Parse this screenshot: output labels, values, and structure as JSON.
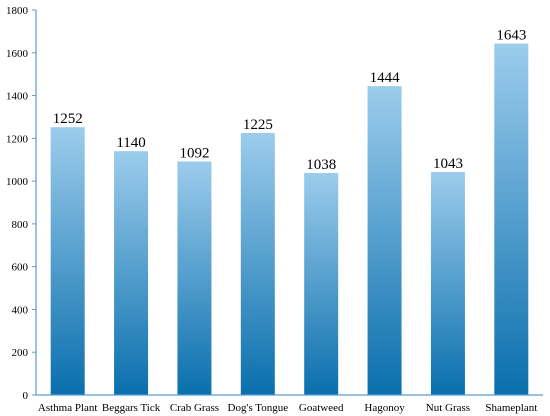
{
  "chart_data": {
    "type": "bar",
    "categories": [
      "Asthma Plant",
      "Beggars Tick",
      "Crab Grass",
      "Dog's Tongue",
      "Goatweed",
      "Hagonoy",
      "Nut Grass",
      "Shameplant"
    ],
    "values": [
      1252,
      1140,
      1092,
      1225,
      1038,
      1444,
      1043,
      1643
    ],
    "data_labels": [
      "1252",
      "1140",
      "1092",
      "1225",
      "1038",
      "1444",
      "1043",
      "1643"
    ],
    "yticks": [
      0,
      200,
      400,
      600,
      800,
      1000,
      1200,
      1400,
      1600,
      1800
    ],
    "ytick_labels": [
      "0",
      "200",
      "400",
      "600",
      "800",
      "1000",
      "1200",
      "1400",
      "1600",
      "1800"
    ],
    "ylim": [
      0,
      1800
    ],
    "title": "",
    "xlabel": "",
    "ylabel": "",
    "grid": false,
    "legend": "none",
    "colors": {
      "bar_top": "#9cccec",
      "bar_bottom": "#0a6fad",
      "axis": "#5b9bd5"
    }
  }
}
